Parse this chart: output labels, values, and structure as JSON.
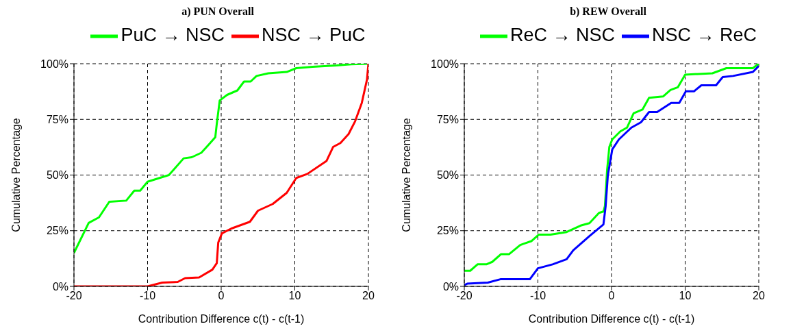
{
  "chart_data": [
    {
      "type": "line",
      "title": "a) PUN Overall",
      "xlabel": "Contribution Difference c(t) - c(t-1)",
      "ylabel": "Cumulative Percentage",
      "xlim": [
        -20,
        20
      ],
      "xticks": [
        -20,
        -10,
        0,
        10,
        20
      ],
      "ylim": [
        0,
        100
      ],
      "yticks": [
        {
          "value": 0,
          "label": "0%"
        },
        {
          "value": 25,
          "label": "25%"
        },
        {
          "value": 50,
          "label": "50%"
        },
        {
          "value": 75,
          "label": "75%"
        },
        {
          "value": 100,
          "label": "100%"
        }
      ],
      "grid": true,
      "legend": "top",
      "marker": "none",
      "line_style": "solid",
      "series": [
        {
          "name": "PuC → NSC",
          "color": "#00ff00",
          "x": [
            -20,
            -18,
            -16.6,
            -15.2,
            -12.9,
            -11.8,
            -11,
            -10,
            -7.1,
            -5.1,
            -4,
            -2.7,
            -1.6,
            -0.8,
            -0.6,
            -0.2,
            0.8,
            2.2,
            3.1,
            4,
            4.8,
            6.4,
            8.9,
            10.2,
            12.4,
            15.7,
            17.7,
            20
          ],
          "values": [
            15,
            28.5,
            31,
            38,
            38.5,
            43,
            43,
            47,
            50,
            57.5,
            58,
            60,
            64,
            67,
            73,
            83.5,
            86,
            88,
            92,
            92,
            94.5,
            95.7,
            96.3,
            98,
            98.6,
            99.2,
            99.8,
            100
          ]
        },
        {
          "name": "NSC → PuC",
          "color": "#ff0000",
          "x": [
            -20,
            -10,
            -8,
            -5.9,
            -4.9,
            -3,
            -1.2,
            -0.6,
            -0.4,
            0.1,
            1.4,
            3.9,
            5,
            7,
            8.9,
            10.2,
            11.7,
            14.3,
            15.2,
            16.2,
            17.3,
            18.2,
            19.1,
            19.8,
            20
          ],
          "values": [
            0,
            0,
            1.7,
            2,
            3.7,
            4,
            7.5,
            10.4,
            19.7,
            23.8,
            26,
            29,
            34,
            37,
            42,
            48.7,
            50.5,
            56.3,
            62.6,
            64.4,
            68.4,
            74.2,
            82.4,
            92.8,
            100
          ]
        }
      ]
    },
    {
      "type": "line",
      "title": "b) REW Overall",
      "xlabel": "Contribution Difference c(t) - c(t-1)",
      "ylabel": "Cumulative Percentage",
      "xlim": [
        -20,
        20
      ],
      "xticks": [
        -20,
        -10,
        0,
        10,
        20
      ],
      "ylim": [
        0,
        100
      ],
      "yticks": [
        {
          "value": 0,
          "label": "0%"
        },
        {
          "value": 25,
          "label": "25%"
        },
        {
          "value": 50,
          "label": "50%"
        },
        {
          "value": 75,
          "label": "75%"
        },
        {
          "value": 100,
          "label": "100%"
        }
      ],
      "grid": true,
      "legend": "top",
      "marker": "none",
      "line_style": "solid",
      "series": [
        {
          "name": "ReC → NSC",
          "color": "#00ff00",
          "x": [
            -20,
            -19.2,
            -18.2,
            -17,
            -16.2,
            -15,
            -13.9,
            -12.4,
            -10.9,
            -9.9,
            -8.3,
            -6.1,
            -4.2,
            -3,
            -1.7,
            -1.1,
            -0.9,
            -0.6,
            -0.3,
            0.1,
            1.2,
            2.1,
            3,
            4.2,
            5.1,
            7,
            8,
            9,
            10,
            13.7,
            15.6,
            19.2,
            20
          ],
          "values": [
            7,
            7,
            9.9,
            9.9,
            11,
            14.5,
            14.5,
            18.6,
            20.3,
            23.2,
            23.2,
            24.4,
            27.3,
            28.4,
            33,
            33.6,
            36,
            52.2,
            62.6,
            66,
            69.6,
            71.3,
            77.7,
            79.4,
            84.7,
            85.3,
            88.2,
            89.4,
            95.1,
            95.7,
            98,
            98,
            100
          ]
        },
        {
          "name": "NSC → ReC",
          "color": "#0000ff",
          "x": [
            -20,
            -19.6,
            -16.8,
            -15.1,
            -11.1,
            -10,
            -8,
            -6.1,
            -5.2,
            -3,
            -1.1,
            -0.8,
            -0.5,
            0.1,
            1,
            2.7,
            4,
            5.1,
            6.2,
            8.1,
            9.2,
            10.1,
            11.2,
            12.2,
            14.2,
            15.1,
            16.5,
            19.2,
            20
          ],
          "values": [
            0.6,
            1.2,
            1.7,
            3.2,
            3.2,
            8.1,
            9.9,
            12.2,
            16.2,
            22.6,
            27.8,
            36,
            49.9,
            61.5,
            66,
            71.3,
            73.7,
            78.3,
            78.3,
            82.4,
            82.4,
            87.6,
            87.6,
            90.3,
            90.3,
            94,
            94.5,
            96.3,
            99
          ]
        }
      ]
    }
  ]
}
